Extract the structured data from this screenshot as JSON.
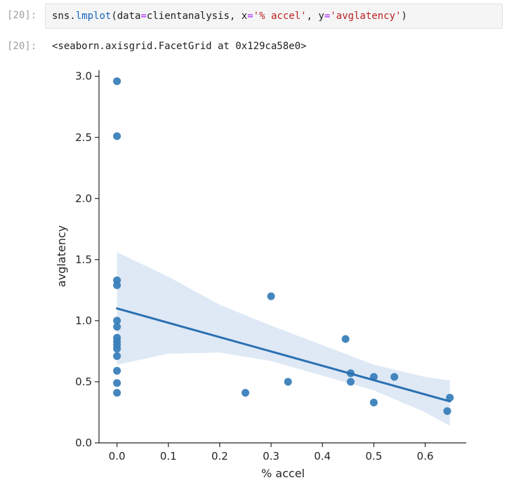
{
  "cell": {
    "in_prompt": "[20]:",
    "out_prompt": "[20]:",
    "code_tokens": [
      {
        "t": "sns",
        "c": "tok-name"
      },
      {
        "t": ".",
        "c": "tok-punct"
      },
      {
        "t": "lmplot",
        "c": "tok-func"
      },
      {
        "t": "(",
        "c": "tok-punct"
      },
      {
        "t": "data",
        "c": "tok-kw"
      },
      {
        "t": "=",
        "c": "tok-op"
      },
      {
        "t": "clientanalysis",
        "c": "tok-name"
      },
      {
        "t": ", ",
        "c": "tok-punct"
      },
      {
        "t": "x",
        "c": "tok-kw"
      },
      {
        "t": "=",
        "c": "tok-op"
      },
      {
        "t": "'% accel'",
        "c": "tok-str"
      },
      {
        "t": ", ",
        "c": "tok-punct"
      },
      {
        "t": "y",
        "c": "tok-kw"
      },
      {
        "t": "=",
        "c": "tok-op"
      },
      {
        "t": "'avglatency'",
        "c": "tok-str"
      },
      {
        "t": ")",
        "c": "tok-punct"
      }
    ],
    "output_text": "<seaborn.axisgrid.FacetGrid at 0x129ca58e0>"
  },
  "chart_data": {
    "type": "scatter",
    "xlabel": "% accel",
    "ylabel": "avglatency",
    "xlim": [
      -0.035,
      0.68
    ],
    "ylim": [
      0.0,
      3.05
    ],
    "xticks": [
      0.0,
      0.1,
      0.2,
      0.3,
      0.4,
      0.5,
      0.6
    ],
    "xtick_labels": [
      "0.0",
      "0.1",
      "0.2",
      "0.3",
      "0.4",
      "0.5",
      "0.6"
    ],
    "yticks": [
      0.0,
      0.5,
      1.0,
      1.5,
      2.0,
      2.5,
      3.0
    ],
    "ytick_labels": [
      "0.0",
      "0.5",
      "1.0",
      "1.5",
      "2.0",
      "2.5",
      "3.0"
    ],
    "grid": false,
    "point_color": "#3a7fba",
    "line_color": "#2a70b2",
    "band_color": "#dce8f4",
    "points": [
      {
        "x": 0.0,
        "y": 2.96
      },
      {
        "x": 0.0,
        "y": 2.51
      },
      {
        "x": 0.0,
        "y": 1.33
      },
      {
        "x": 0.0,
        "y": 1.29
      },
      {
        "x": 0.0,
        "y": 1.0
      },
      {
        "x": 0.0,
        "y": 0.95
      },
      {
        "x": 0.0,
        "y": 0.86
      },
      {
        "x": 0.0,
        "y": 0.83
      },
      {
        "x": 0.0,
        "y": 0.8
      },
      {
        "x": 0.0,
        "y": 0.77
      },
      {
        "x": 0.0,
        "y": 0.71
      },
      {
        "x": 0.0,
        "y": 0.59
      },
      {
        "x": 0.0,
        "y": 0.49
      },
      {
        "x": 0.0,
        "y": 0.41
      },
      {
        "x": 0.25,
        "y": 0.41
      },
      {
        "x": 0.3,
        "y": 1.2
      },
      {
        "x": 0.333,
        "y": 0.5
      },
      {
        "x": 0.445,
        "y": 0.85
      },
      {
        "x": 0.455,
        "y": 0.57
      },
      {
        "x": 0.455,
        "y": 0.5
      },
      {
        "x": 0.5,
        "y": 0.54
      },
      {
        "x": 0.5,
        "y": 0.33
      },
      {
        "x": 0.54,
        "y": 0.54
      },
      {
        "x": 0.643,
        "y": 0.26
      },
      {
        "x": 0.648,
        "y": 0.37
      }
    ],
    "regression": {
      "x": [
        0.0,
        0.648
      ],
      "y": [
        1.1,
        0.34
      ]
    },
    "confidence_band": {
      "x": [
        0.0,
        0.1,
        0.2,
        0.3,
        0.4,
        0.5,
        0.6,
        0.648
      ],
      "upper": [
        1.56,
        1.36,
        1.13,
        0.96,
        0.8,
        0.64,
        0.54,
        0.51
      ],
      "lower": [
        0.64,
        0.73,
        0.74,
        0.67,
        0.55,
        0.43,
        0.25,
        0.14
      ]
    }
  }
}
